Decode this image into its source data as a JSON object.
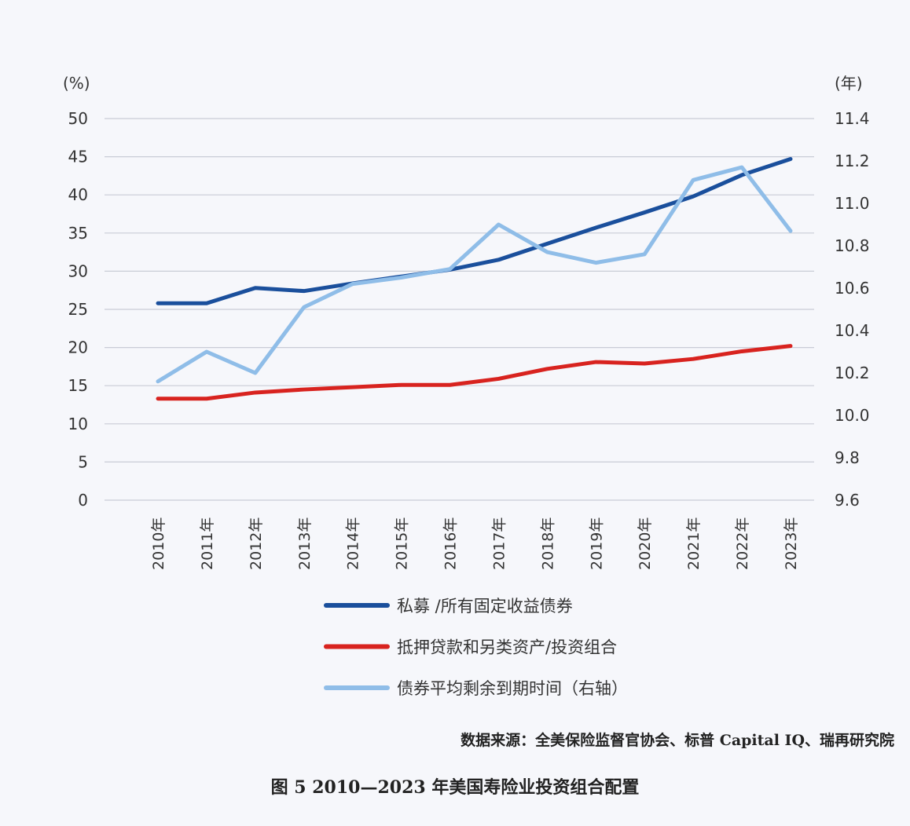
{
  "chart_data": {
    "type": "line",
    "left_unit": "(%)",
    "right_unit": "(年)",
    "categories": [
      "2010年",
      "2011年",
      "2012年",
      "2013年",
      "2014年",
      "2015年",
      "2016年",
      "2017年",
      "2018年",
      "2019年",
      "2020年",
      "2021年",
      "2022年",
      "2023年"
    ],
    "left_ylim": [
      0,
      50
    ],
    "left_ticks": [
      0,
      5,
      10,
      15,
      20,
      25,
      30,
      35,
      40,
      45,
      50
    ],
    "right_ylim": [
      9.6,
      11.4
    ],
    "right_ticks": [
      "9.6",
      "9.8",
      "10.0",
      "10.2",
      "10.4",
      "10.6",
      "10.8",
      "11.0",
      "11.2",
      "11.4"
    ],
    "grid": true,
    "legend_position": "bottom",
    "series": [
      {
        "name": "私募 /所有固定收益债券",
        "axis": "left",
        "color": "#1a4f9c",
        "values": [
          25.8,
          25.8,
          27.8,
          27.4,
          28.4,
          29.3,
          30.2,
          31.5,
          33.6,
          35.7,
          37.7,
          39.8,
          42.6,
          44.7
        ]
      },
      {
        "name": "抵押贷款和另类资产/投资组合",
        "axis": "left",
        "color": "#d8231f",
        "values": [
          13.3,
          13.3,
          14.1,
          14.5,
          14.8,
          15.1,
          15.1,
          15.9,
          17.2,
          18.1,
          17.9,
          18.5,
          19.5,
          20.2
        ]
      },
      {
        "name": "债券平均剩余到期时间（右轴）",
        "axis": "right",
        "color": "#8fbde8",
        "values": [
          10.16,
          10.3,
          10.2,
          10.51,
          10.62,
          10.65,
          10.69,
          10.9,
          10.77,
          10.72,
          10.76,
          11.11,
          11.17,
          10.87
        ]
      }
    ]
  },
  "source": "数据来源：全美保险监督官协会、标普 Capital IQ、瑞再研究院",
  "caption": "图 5  2010—2023 年美国寿险业投资组合配置"
}
